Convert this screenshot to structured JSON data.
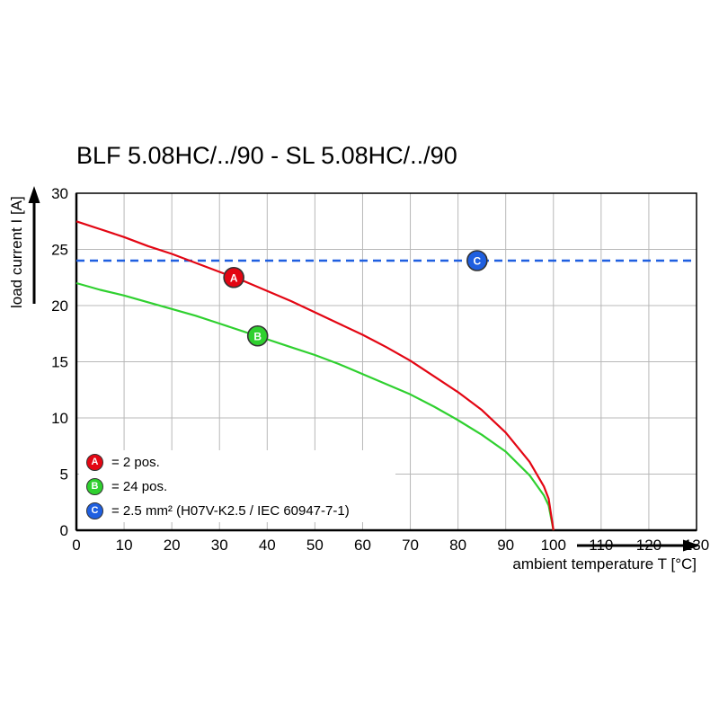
{
  "title": "BLF 5.08HC/../90 - SL 5.08HC/../90",
  "chart_data": {
    "type": "line",
    "title": "BLF 5.08HC/../90 - SL 5.08HC/../90",
    "xlabel": "ambient temperature T [°C]",
    "ylabel": "load current I [A]",
    "xlim": [
      0,
      130
    ],
    "ylim": [
      0,
      30
    ],
    "x_ticks": [
      0,
      10,
      20,
      30,
      40,
      50,
      60,
      70,
      80,
      90,
      100,
      110,
      120,
      130
    ],
    "y_ticks": [
      0,
      5,
      10,
      15,
      20,
      25,
      30
    ],
    "grid": true,
    "colors": {
      "grid": "#b8b8b8",
      "frame": "#000000",
      "series_a_red": "#e30613",
      "series_b_green": "#2fd02f",
      "series_c_blue": "#1f5fe0",
      "marker_ring": "#333333"
    },
    "series": [
      {
        "name": "C",
        "label": "2.5 mm² (H07V-K2.5 / IEC 60947-7-1)",
        "color": "#1f5fe0",
        "style": "dashed",
        "points": [
          [
            0,
            24
          ],
          [
            130,
            24
          ]
        ],
        "marker": {
          "t": 84,
          "i": 24,
          "text": "C"
        }
      },
      {
        "name": "B",
        "label": "24 pos.",
        "color": "#2fd02f",
        "style": "solid",
        "points": [
          [
            0,
            22.0
          ],
          [
            5,
            21.4
          ],
          [
            10,
            20.9
          ],
          [
            15,
            20.3
          ],
          [
            20,
            19.7
          ],
          [
            25,
            19.1
          ],
          [
            30,
            18.4
          ],
          [
            35,
            17.7
          ],
          [
            40,
            17.0
          ],
          [
            45,
            16.3
          ],
          [
            50,
            15.6
          ],
          [
            55,
            14.8
          ],
          [
            60,
            13.9
          ],
          [
            65,
            13.0
          ],
          [
            70,
            12.1
          ],
          [
            75,
            11.0
          ],
          [
            80,
            9.8
          ],
          [
            85,
            8.5
          ],
          [
            90,
            7.0
          ],
          [
            95,
            4.9
          ],
          [
            98,
            3.1
          ],
          [
            99,
            2.2
          ],
          [
            100,
            0
          ]
        ],
        "marker": {
          "t": 38,
          "i": 17.3,
          "text": "B"
        }
      },
      {
        "name": "A",
        "label": "2 pos.",
        "color": "#e30613",
        "style": "solid",
        "points": [
          [
            0,
            27.5
          ],
          [
            5,
            26.8
          ],
          [
            10,
            26.1
          ],
          [
            15,
            25.3
          ],
          [
            20,
            24.6
          ],
          [
            25,
            23.8
          ],
          [
            30,
            23.0
          ],
          [
            35,
            22.2
          ],
          [
            40,
            21.3
          ],
          [
            45,
            20.4
          ],
          [
            50,
            19.4
          ],
          [
            55,
            18.4
          ],
          [
            60,
            17.4
          ],
          [
            65,
            16.3
          ],
          [
            70,
            15.1
          ],
          [
            75,
            13.7
          ],
          [
            80,
            12.3
          ],
          [
            85,
            10.7
          ],
          [
            90,
            8.7
          ],
          [
            95,
            6.1
          ],
          [
            98,
            3.9
          ],
          [
            99,
            2.8
          ],
          [
            100,
            0
          ]
        ],
        "marker": {
          "t": 33,
          "i": 22.5,
          "text": "A"
        }
      }
    ],
    "legend": [
      {
        "badge": "A",
        "color": "#e30613",
        "text": "= 2 pos."
      },
      {
        "badge": "B",
        "color": "#2fd02f",
        "text": "= 24 pos."
      },
      {
        "badge": "C",
        "color": "#1f5fe0",
        "text": "= 2.5 mm² (H07V-K2.5 / IEC 60947-7-1)"
      }
    ],
    "legend_position": "lower-left-inside"
  }
}
